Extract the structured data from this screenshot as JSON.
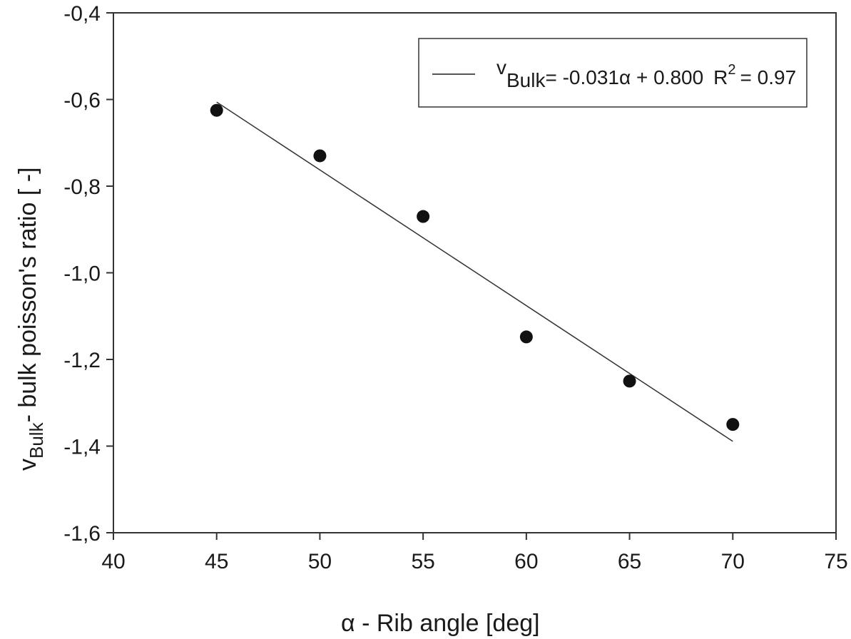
{
  "chart_data": {
    "type": "scatter",
    "title": "",
    "xlabel": "α - Rib angle [deg]",
    "ylabel": {
      "symbol": "v",
      "subscript": "Bulk",
      "text": "- bulk poisson's ratio [ -]"
    },
    "xlim": [
      40,
      75
    ],
    "ylim": [
      -1.6,
      -0.4
    ],
    "xticks": [
      40,
      45,
      50,
      55,
      60,
      65,
      70,
      75
    ],
    "xtick_labels": [
      "40",
      "45",
      "50",
      "55",
      "60",
      "65",
      "70",
      "75"
    ],
    "yticks": [
      -0.4,
      -0.6,
      -0.8,
      -1.0,
      -1.2,
      -1.4,
      -1.6
    ],
    "ytick_labels": [
      "-0,4",
      "-0,6",
      "-0,8",
      "-1,0",
      "-1,2",
      "-1,4",
      "-1,6"
    ],
    "grid": false,
    "points": {
      "x": [
        45,
        50,
        55,
        60,
        65,
        70
      ],
      "y": [
        -0.625,
        -0.73,
        -0.87,
        -1.148,
        -1.25,
        -1.35
      ],
      "color": "#111111"
    },
    "fit_line": {
      "x": [
        45,
        70
      ],
      "y": [
        -0.606,
        -1.389
      ],
      "color": "#333333"
    },
    "legend": {
      "placement": "top-right",
      "symbol": "v",
      "subscript": "Bulk",
      "equation": "= -0.031α + 0.800",
      "r_label": "R",
      "r_sup": "2",
      "r_value": "= 0.97"
    }
  }
}
